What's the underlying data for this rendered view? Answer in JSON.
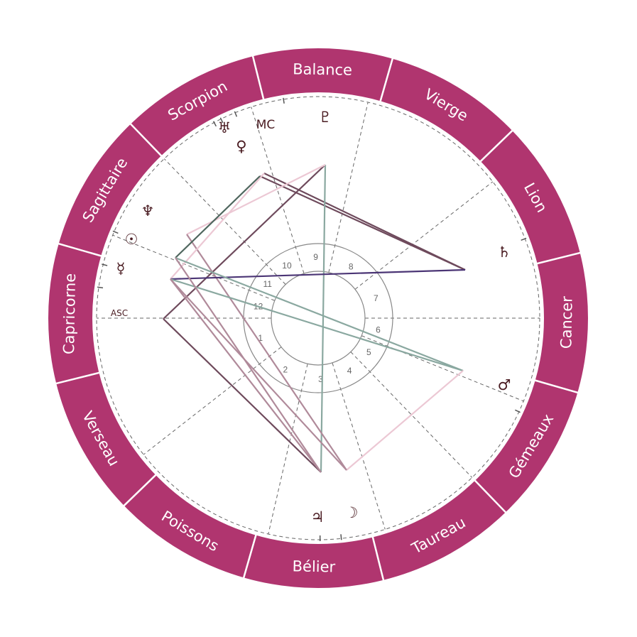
{
  "chart": {
    "colors": {
      "ring": "#b0356f",
      "ring_divider": "#ffffff",
      "dashed": "#666666",
      "house_circle": "#888888",
      "glyph": "#4a1c22"
    },
    "signs": [
      {
        "name": "Balance"
      },
      {
        "name": "Vierge"
      },
      {
        "name": "Lion"
      },
      {
        "name": "Cancer"
      },
      {
        "name": "Gémeaux"
      },
      {
        "name": "Taureau"
      },
      {
        "name": "Bélier"
      },
      {
        "name": "Poissons"
      },
      {
        "name": "Verseau"
      },
      {
        "name": "Capricorne"
      },
      {
        "name": "Sagittaire"
      },
      {
        "name": "Scorpion"
      }
    ],
    "houses": [
      "1",
      "2",
      "3",
      "4",
      "5",
      "6",
      "7",
      "8",
      "9",
      "10",
      "11",
      "12"
    ],
    "angles": {
      "asc": "ASC",
      "mc": "MC"
    },
    "planets": [
      {
        "name": "pluto",
        "glyph": "♇"
      },
      {
        "name": "uranus",
        "glyph": "♅"
      },
      {
        "name": "venus",
        "glyph": "♀"
      },
      {
        "name": "neptune",
        "glyph": "♆"
      },
      {
        "name": "sun",
        "glyph": "☉"
      },
      {
        "name": "mercury",
        "glyph": "☿"
      },
      {
        "name": "saturn",
        "glyph": "♄"
      },
      {
        "name": "mars",
        "glyph": "♂"
      },
      {
        "name": "jupiter",
        "glyph": "♃"
      },
      {
        "name": "moon",
        "glyph": "☽"
      }
    ],
    "aspect_colors": {
      "dark": "#6e4a5c",
      "mauve": "#b08a9a",
      "teal": "#8aa8a0",
      "pink": "#ecc8d4",
      "purple": "#4b3575",
      "green": "#4f665e"
    }
  }
}
